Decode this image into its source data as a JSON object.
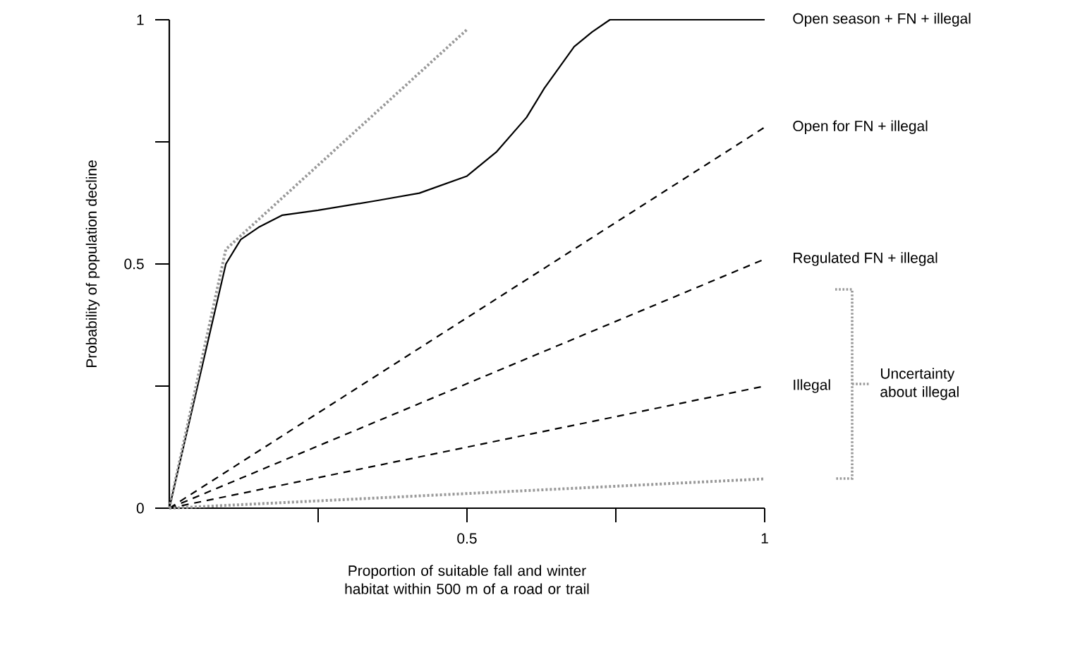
{
  "chart_data": {
    "type": "line",
    "xlabel": "Proportion of suitable fall and winter habitat within 500 m of a road or trail",
    "ylabel": "Probability of population decline",
    "xlim": [
      0,
      1
    ],
    "ylim": [
      0,
      1
    ],
    "xticks": [
      {
        "value": 0.25,
        "label": null
      },
      0.5,
      {
        "value": 0.75,
        "label": null
      },
      1
    ],
    "yticks": [
      0,
      {
        "value": 0.25,
        "label": null
      },
      0.5,
      {
        "value": 0.75,
        "label": null
      },
      1
    ],
    "series": [
      {
        "name": "Open season + FN + illegal",
        "color": "#000000",
        "line_style": "solid",
        "x": [
          0,
          0.095,
          0.12,
          0.15,
          0.19,
          0.25,
          0.35,
          0.42,
          0.5,
          0.55,
          0.6,
          0.63,
          0.68,
          0.71,
          0.74,
          1
        ],
        "values": [
          0,
          0.5,
          0.55,
          0.575,
          0.6,
          0.61,
          0.63,
          0.645,
          0.68,
          0.73,
          0.8,
          0.86,
          0.945,
          0.975,
          1,
          1
        ]
      },
      {
        "name": "Open for FN + illegal",
        "color": "#000000",
        "line_style": "dashed",
        "x": [
          0,
          1
        ],
        "values": [
          0,
          0.78
        ]
      },
      {
        "name": "Regulated FN + illegal",
        "color": "#000000",
        "line_style": "dashed",
        "x": [
          0,
          1
        ],
        "values": [
          0,
          0.51
        ]
      },
      {
        "name": "Illegal",
        "color": "#000000",
        "line_style": "dashed",
        "x": [
          0,
          1
        ],
        "values": [
          0,
          0.25
        ]
      },
      {
        "color": "#999999",
        "line_style": "dotted",
        "x": [
          0,
          0.095,
          0.5
        ],
        "values": [
          0,
          0.53,
          0.98
        ]
      },
      {
        "color": "#999999",
        "line_style": "dotted",
        "x": [
          0,
          1
        ],
        "values": [
          0,
          0.06
        ]
      }
    ],
    "annotations": [
      "Uncertainty about illegal"
    ]
  }
}
